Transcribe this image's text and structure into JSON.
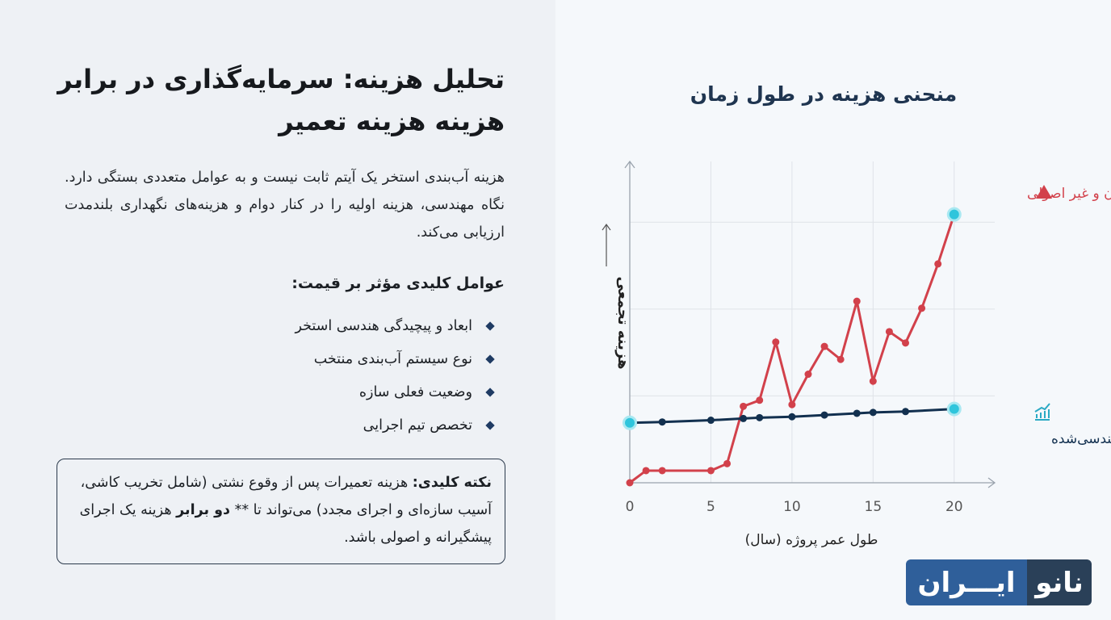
{
  "left": {
    "title": "تحلیل هزینه: سرمایه‌گذاری در برابر هزینه هزینه تعمیر",
    "intro": "هزینه آب‌بندی استخر یک آیتم ثابت نیست و به عوامل متعددی بستگی دارد. نگاه مهندسی، هزینه اولیه را در کنار دوام و هزینه‌های نگهداری بلندمدت ارزیابی می‌کند.",
    "factors_heading": "عوامل کلیدی مؤثر بر قیمت:",
    "factors": [
      "ابعاد و پیچیدگی هندسی استخر",
      "نوع سیستم آب‌بندی منتخب",
      "وضعیت فعلی سازه",
      "تخصص تیم اجرایی"
    ],
    "note_label": "نکته کلیدی:",
    "note_text": " هزینه تعمیرات پس از وقوع نشتی (شامل تخریب کاشی، آسیب سازه‌ای و اجرای مجدد) می‌تواند تا ** ",
    "note_bold": "دو برابر",
    "note_end": " هزینه یک اجرای پیشگیرانه و اصولی باشد."
  },
  "chart_data": {
    "type": "line",
    "title": "منحنی هزینه در طول زمان",
    "xlabel": "طول عمر پروژه (سال)",
    "ylabel": "هزینه تجمعی",
    "xticks": [
      "0",
      "5",
      "10",
      "15",
      "20"
    ],
    "xlim": [
      0,
      22.5
    ],
    "ylim": [
      0,
      3.7
    ],
    "grid": true,
    "series": [
      {
        "name": "اجرای ارزان و غیر اصولی",
        "color": "#d2414b",
        "icon": "warning-icon",
        "x": [
          0,
          1,
          2,
          5,
          6,
          7,
          8,
          9,
          10,
          11,
          12,
          13,
          14,
          15,
          16,
          17,
          18,
          19,
          20
        ],
        "y": [
          0,
          0.14,
          0.14,
          0.14,
          0.22,
          0.88,
          0.95,
          1.62,
          0.9,
          1.25,
          1.57,
          1.42,
          2.09,
          1.17,
          1.74,
          1.61,
          2.01,
          2.52,
          3.09
        ]
      },
      {
        "name": "سرمایه‌گذاری در سیستم مهندسی‌شده",
        "color": "#12304f",
        "icon": "chart-growth-icon",
        "x": [
          0,
          2,
          5,
          7,
          8,
          10,
          12,
          14,
          15,
          17,
          20
        ],
        "y": [
          0.69,
          0.7,
          0.72,
          0.74,
          0.75,
          0.76,
          0.78,
          0.8,
          0.81,
          0.82,
          0.85
        ]
      }
    ],
    "highlight_color": "#2fc5dc"
  },
  "logo": {
    "part1": "نانو",
    "part2": "ایـــران"
  }
}
